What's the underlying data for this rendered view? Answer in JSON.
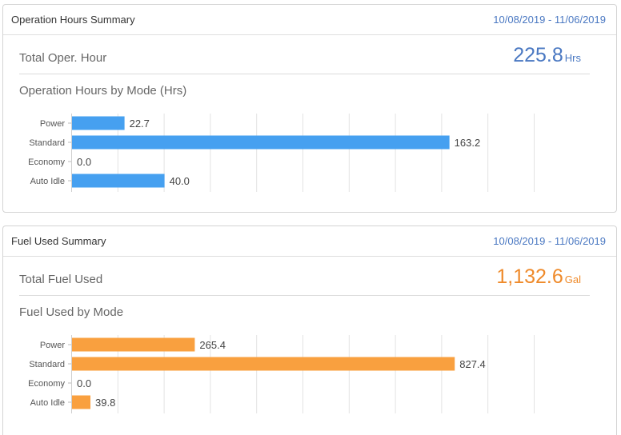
{
  "operation_hours": {
    "title": "Operation Hours Summary",
    "date_range": "10/08/2019 - 11/06/2019",
    "total_label": "Total Oper. Hour",
    "total_value": "225.8",
    "total_unit": "Hrs",
    "chart_title": "Operation Hours by Mode (Hrs)",
    "color": "#46a0f0",
    "value_color": "#4a78c2"
  },
  "fuel_used": {
    "title": "Fuel Used Summary",
    "date_range": "10/08/2019 - 11/06/2019",
    "total_label": "Total Fuel Used",
    "total_value": "1,132.6",
    "total_unit": "Gal",
    "chart_title": "Fuel Used by Mode",
    "color": "#f9a03f",
    "value_color": "#ef8a2a"
  },
  "chart_data": [
    {
      "type": "bar",
      "orientation": "horizontal",
      "categories": [
        "Power",
        "Standard",
        "Economy",
        "Auto Idle"
      ],
      "values": [
        22.7,
        163.2,
        0.0,
        40.0
      ],
      "value_labels": [
        "22.7",
        "163.2",
        "0.0",
        "40.0"
      ],
      "title": "Operation Hours by Mode (Hrs)",
      "xlim": [
        0,
        200
      ],
      "grid": true
    },
    {
      "type": "bar",
      "orientation": "horizontal",
      "categories": [
        "Power",
        "Standard",
        "Economy",
        "Auto Idle"
      ],
      "values": [
        265.4,
        827.4,
        0.0,
        39.8
      ],
      "value_labels": [
        "265.4",
        "827.4",
        "0.0",
        "39.8"
      ],
      "title": "Fuel Used by Mode",
      "xlim": [
        0,
        1000
      ],
      "grid": true
    }
  ]
}
